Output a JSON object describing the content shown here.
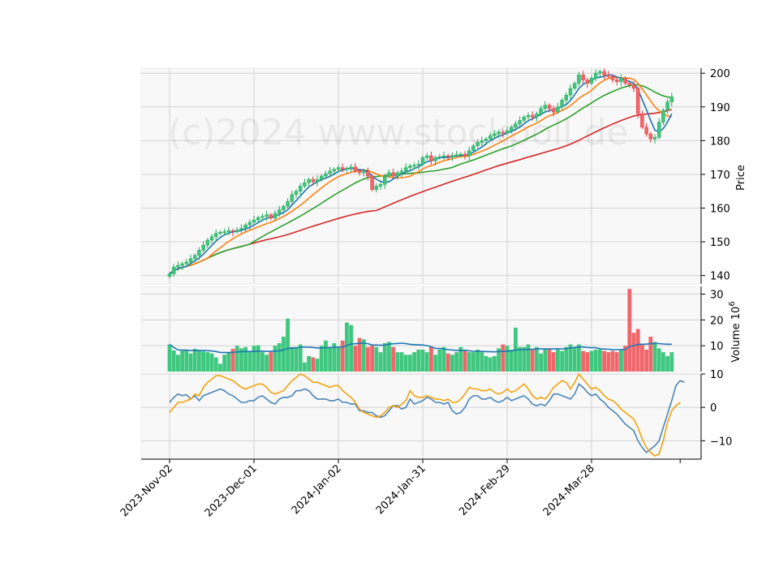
{
  "watermark": "(c)2024 www.stockpoll.de",
  "colors": {
    "up": "#26a65b",
    "up_fill": "#3ec77e",
    "down": "#e0393e",
    "down_fill": "#f0676b",
    "ma1": "#1f77b4",
    "ma2": "#ff7f0e",
    "ma3": "#2ca02c",
    "ma4": "#d62728",
    "osc1": "#4a86b8",
    "osc2": "#f2a30f",
    "panel_bg": "#f8f8f8",
    "grid": "#d2d2d2"
  },
  "chart_data": [
    {
      "type": "candlestick",
      "ylabel": "Price",
      "ylim": [
        137.5,
        201.5
      ],
      "yticks": [
        140,
        150,
        160,
        170,
        180,
        190,
        200
      ],
      "x_tick_labels": [
        "2023-Nov-02",
        "2023-Dec-01",
        "2024-Jan-02",
        "2024-Jan-31",
        "2024-Feb-29",
        "2024-Mar-28"
      ],
      "x_tick_index": [
        0,
        20,
        40,
        60,
        80,
        100
      ],
      "bars": 120,
      "close": [
        140.5,
        142.5,
        143.0,
        143.5,
        144.0,
        145.0,
        146.0,
        147.5,
        149.0,
        150.5,
        151.5,
        152.5,
        152.8,
        153.0,
        153.3,
        153.0,
        153.5,
        154.0,
        155.0,
        155.8,
        156.5,
        157.2,
        157.5,
        158.0,
        157.0,
        158.5,
        159.5,
        160.5,
        162.0,
        164.0,
        165.0,
        166.5,
        167.5,
        168.5,
        167.8,
        168.5,
        169.5,
        170.2,
        171.0,
        171.5,
        172.0,
        171.5,
        171.8,
        172.2,
        171.0,
        170.5,
        170.8,
        169.5,
        165.5,
        166.5,
        167.0,
        169.5,
        170.5,
        169.5,
        170.5,
        171.0,
        172.0,
        172.5,
        172.7,
        173.0,
        175.0,
        175.5,
        174.0,
        175.0,
        175.2,
        175.5,
        175.3,
        175.6,
        175.8,
        176.0,
        175.5,
        177.0,
        178.5,
        179.5,
        180.0,
        180.5,
        181.5,
        182.0,
        182.5,
        182.2,
        183.0,
        184.0,
        185.0,
        186.0,
        187.0,
        187.5,
        187.0,
        188.0,
        189.5,
        190.5,
        189.5,
        188.5,
        190.0,
        192.0,
        193.5,
        195.5,
        197.0,
        199.5,
        198.0,
        197.0,
        198.5,
        200.0,
        200.5,
        199.5,
        199.0,
        198.0,
        197.5,
        198.5,
        197.0,
        196.5,
        195.5,
        188.0,
        184.0,
        182.0,
        180.5,
        181.0,
        185.5,
        189.0,
        191.5,
        193.0
      ],
      "volume": [
        10.5,
        8.2,
        6.5,
        8.0,
        8.5,
        7.0,
        8.8,
        8.0,
        7.8,
        7.5,
        7.0,
        5.5,
        3.0,
        6.5,
        7.5,
        8.8,
        10.0,
        9.0,
        9.5,
        8.0,
        10.0,
        10.2,
        7.5,
        6.5,
        7.5,
        10.0,
        11.0,
        13.5,
        20.5,
        9.5,
        9.5,
        10.5,
        3.5,
        6.0,
        5.5,
        5.0,
        10.0,
        12.0,
        9.5,
        11.0,
        9.5,
        12.0,
        19.0,
        18.0,
        10.0,
        13.0,
        12.5,
        9.5,
        10.0,
        9.5,
        7.5,
        11.0,
        11.5,
        9.5,
        7.5,
        7.5,
        6.5,
        6.5,
        7.5,
        8.5,
        8.5,
        7.5,
        9.5,
        6.5,
        8.5,
        9.5,
        7.0,
        6.5,
        7.5,
        9.5,
        8.0,
        7.5,
        7.5,
        8.5,
        7.5,
        6.0,
        5.5,
        6.0,
        9.0,
        10.5,
        10.0,
        8.5,
        17.0,
        9.5,
        9.5,
        10.5,
        8.5,
        9.5,
        7.0,
        9.0,
        8.5,
        7.5,
        8.5,
        8.0,
        9.5,
        10.5,
        9.5,
        10.5,
        8.0,
        7.5,
        8.0,
        8.5,
        8.5,
        8.0,
        7.5,
        8.0,
        7.5,
        8.5,
        10.0,
        32.0,
        15.0,
        16.5,
        10.5,
        8.5,
        13.5,
        11.5,
        9.0,
        7.5,
        6.0,
        7.5
      ],
      "ma_lines": [
        {
          "period": 5,
          "color_key": "ma1"
        },
        {
          "period": 10,
          "color_key": "ma2"
        },
        {
          "period": 20,
          "color_key": "ma3"
        },
        {
          "period": 50,
          "color_key": "ma4"
        }
      ]
    },
    {
      "type": "bar",
      "ylabel": "Volume  10^6",
      "ylim": [
        0,
        33
      ],
      "yticks": [
        10,
        20,
        30
      ],
      "volume_ma_period": 20
    },
    {
      "type": "line",
      "ylim": [
        -15.5,
        10
      ],
      "yticks": [
        -10,
        0,
        10
      ],
      "series": [
        {
          "color_key": "osc1",
          "values": [
            1.5,
            3.0,
            4.0,
            3.5,
            3.8,
            2.5,
            3.5,
            2.0,
            3.5,
            4.0,
            4.5,
            5.0,
            5.5,
            5.0,
            4.0,
            3.5,
            2.5,
            1.5,
            1.5,
            2.0,
            2.0,
            3.0,
            3.5,
            2.5,
            1.5,
            1.0,
            2.5,
            3.0,
            3.0,
            3.5,
            5.0,
            5.0,
            5.5,
            5.0,
            3.5,
            2.5,
            2.5,
            2.5,
            2.0,
            2.0,
            2.5,
            1.5,
            1.5,
            1.0,
            1.0,
            -1.0,
            -1.0,
            -1.5,
            -1.5,
            -2.5,
            -3.0,
            -2.5,
            -1.0,
            0.5,
            0.5,
            -0.5,
            0.0,
            2.5,
            1.0,
            1.5,
            2.0,
            3.0,
            2.5,
            1.5,
            1.5,
            1.0,
            1.5,
            -1.0,
            -2.0,
            -1.5,
            0.0,
            2.5,
            3.5,
            3.5,
            2.5,
            2.5,
            3.0,
            2.0,
            1.5,
            2.0,
            3.0,
            2.0,
            2.5,
            3.0,
            3.5,
            2.5,
            1.0,
            0.5,
            1.0,
            0.5,
            2.0,
            4.0,
            4.0,
            3.5,
            3.0,
            2.5,
            4.0,
            7.0,
            6.0,
            4.5,
            3.5,
            4.0,
            2.5,
            1.5,
            0.0,
            -1.0,
            -2.0,
            -3.5,
            -5.0,
            -6.0,
            -7.0,
            -10.0,
            -12.0,
            -13.5,
            -12.5,
            -11.5,
            -10.0,
            -6.0,
            -2.0,
            2.0,
            6.5,
            8.0,
            7.5
          ]
        },
        {
          "color_key": "osc2",
          "values": [
            -1.5,
            0.0,
            1.5,
            1.5,
            2.0,
            2.5,
            4.0,
            3.5,
            6.0,
            7.5,
            8.5,
            9.5,
            9.5,
            9.0,
            8.5,
            8.0,
            7.0,
            6.0,
            5.5,
            6.0,
            6.5,
            7.0,
            7.0,
            6.0,
            4.5,
            4.0,
            4.5,
            5.0,
            6.5,
            8.0,
            9.0,
            10.0,
            9.5,
            8.5,
            7.5,
            7.5,
            7.0,
            6.5,
            6.0,
            6.5,
            6.5,
            5.0,
            4.0,
            3.0,
            1.5,
            -0.5,
            -1.5,
            -2.0,
            -2.5,
            -3.0,
            -2.5,
            -1.5,
            0.0,
            0.5,
            0.0,
            1.0,
            2.0,
            5.0,
            3.5,
            3.0,
            3.0,
            3.5,
            3.0,
            2.5,
            2.5,
            2.0,
            2.5,
            1.5,
            1.5,
            2.5,
            4.0,
            6.0,
            5.5,
            5.5,
            5.0,
            5.0,
            5.5,
            4.5,
            4.0,
            4.5,
            5.5,
            4.5,
            5.0,
            6.0,
            7.0,
            5.5,
            3.5,
            2.5,
            3.0,
            2.5,
            4.0,
            6.0,
            7.0,
            8.0,
            7.5,
            5.5,
            7.5,
            10.0,
            8.5,
            7.0,
            5.5,
            6.0,
            5.0,
            3.5,
            2.5,
            2.0,
            1.0,
            -0.5,
            -1.5,
            -2.5,
            -3.5,
            -6.0,
            -9.5,
            -12.0,
            -13.5,
            -14.5,
            -14.0,
            -10.0,
            -4.5,
            -1.0,
            0.5,
            1.5
          ]
        }
      ]
    }
  ]
}
